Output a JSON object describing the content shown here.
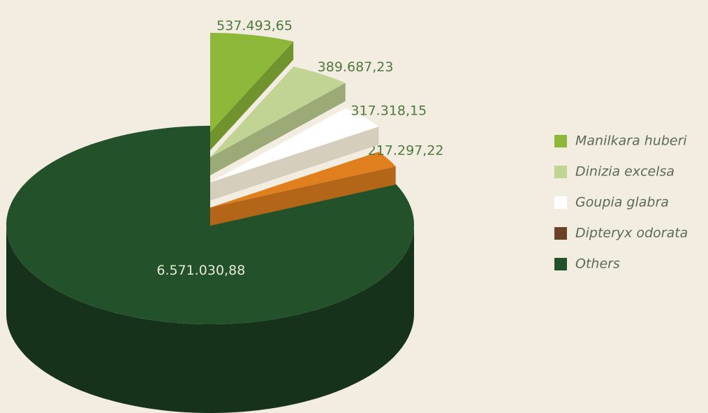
{
  "chart_data": {
    "type": "pie3d",
    "categories": [
      "Manilkara huberi",
      "Dinizia excelsa",
      "Goupia glabra",
      "Dipteryx odorata",
      "Others"
    ],
    "values": [
      537493.65,
      389687.23,
      317318.15,
      217297.22,
      6571030.88
    ],
    "value_labels": [
      "537.493,65",
      "389.687,23",
      "317.318,15",
      "217.297,22",
      "6.571.030,88"
    ],
    "colors": [
      "#8db83a",
      "#c2d494",
      "#ffffff",
      "#e07f1e",
      "#23512a"
    ],
    "legend_colors": [
      "#8db83a",
      "#c2d494",
      "#ffffff",
      "#6b4226",
      "#23512a"
    ],
    "legend": "right"
  }
}
